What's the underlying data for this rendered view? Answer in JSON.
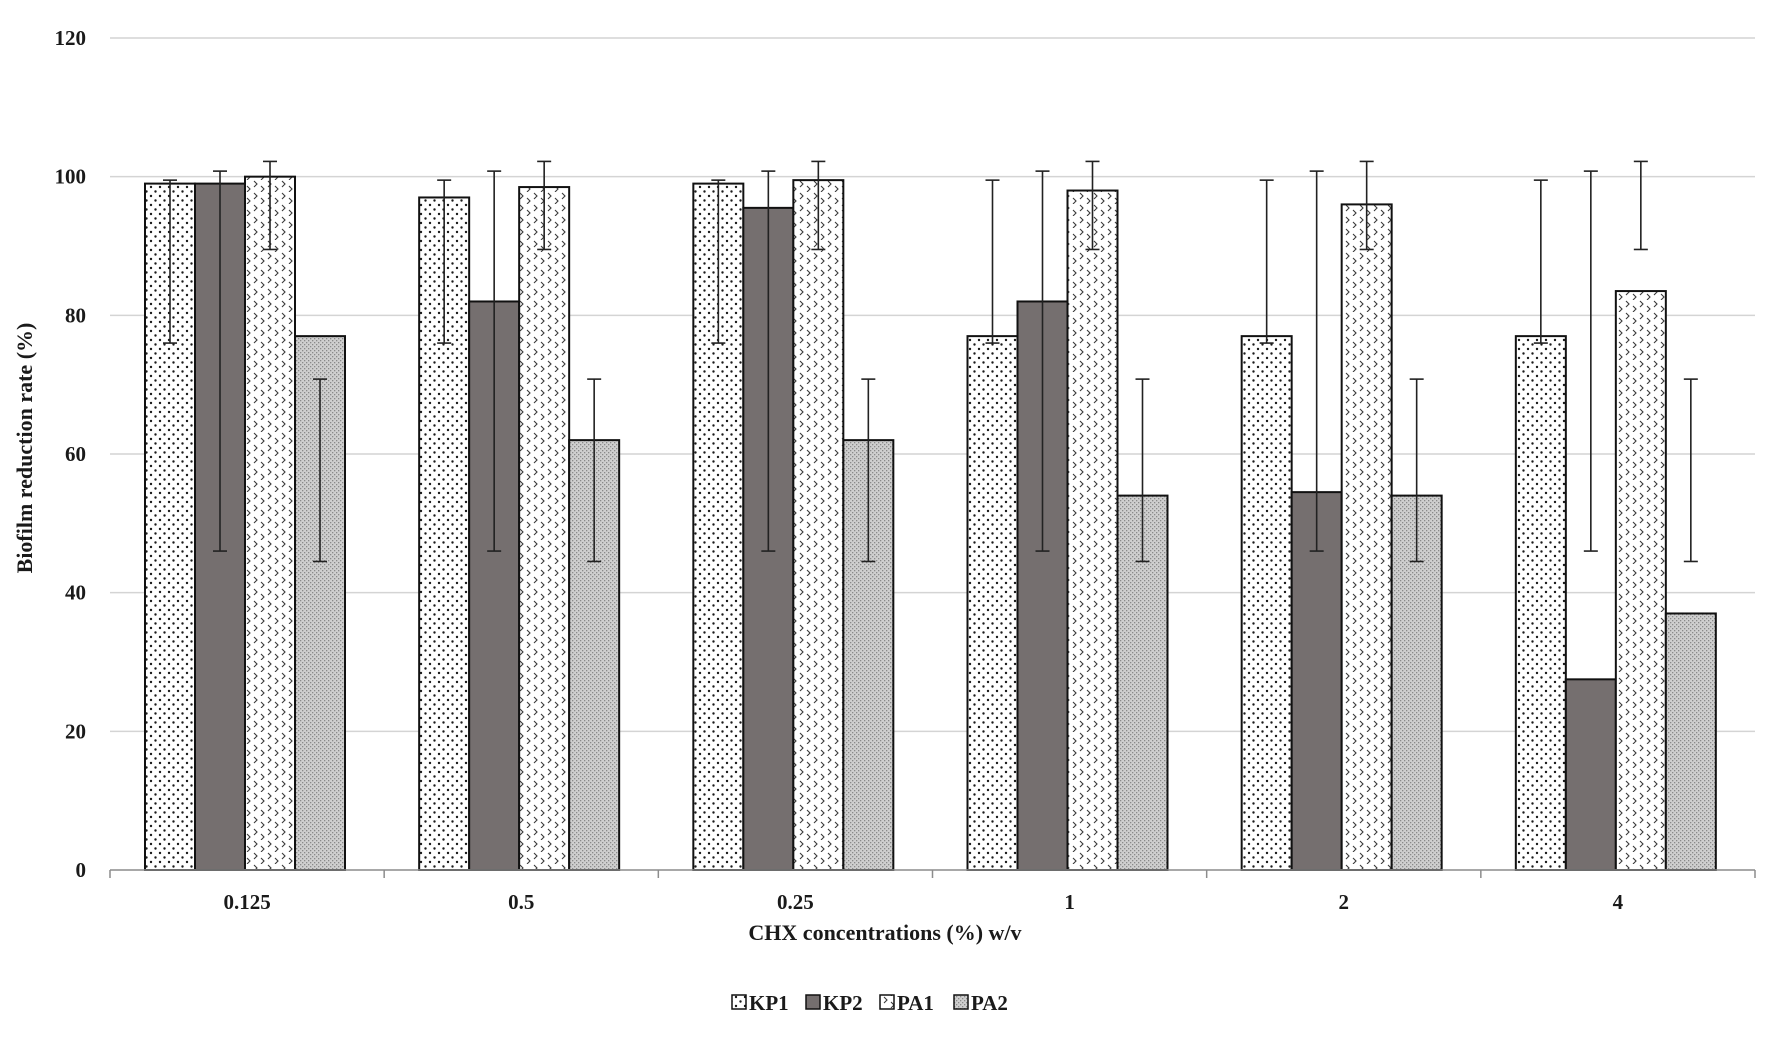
{
  "chart_data": {
    "type": "bar",
    "title": "",
    "xlabel": "CHX  concentrations  (%) w/v",
    "ylabel": "Biofilm  reduction  rate  (%)",
    "ylim": [
      0,
      120
    ],
    "yticks": [
      0,
      20,
      40,
      60,
      80,
      100,
      120
    ],
    "grid": true,
    "legend_position": "bottom",
    "categories": [
      "0.125",
      "0.5",
      "0.25",
      "1",
      "2",
      "4"
    ],
    "series": [
      {
        "name": "KP1",
        "pattern": "dots",
        "color": "#ffffff",
        "values": [
          99,
          97,
          99,
          77,
          77,
          77
        ],
        "error_low": [
          76,
          76,
          76,
          76,
          76,
          76
        ],
        "error_high": [
          99.5,
          99.5,
          99.5,
          99.5,
          99.5,
          99.5
        ]
      },
      {
        "name": "KP2",
        "pattern": "solid",
        "color": "#756f6f",
        "values": [
          99,
          82,
          95.5,
          82,
          54.5,
          27.5
        ],
        "error_low": [
          46,
          46,
          46,
          46,
          46,
          46
        ],
        "error_high": [
          100.8,
          100.8,
          100.8,
          100.8,
          100.8,
          100.8
        ]
      },
      {
        "name": "PA1",
        "pattern": "chevrons",
        "color": "#ffffff",
        "values": [
          100,
          98.5,
          99.5,
          98,
          96,
          83.5
        ],
        "error_low": [
          89.5,
          89.5,
          89.5,
          89.5,
          89.5,
          89.5
        ],
        "error_high": [
          102.2,
          102.2,
          102.2,
          102.2,
          102.2,
          102.2
        ]
      },
      {
        "name": "PA2",
        "pattern": "stipple",
        "color": "#c8c8c8",
        "values": [
          77,
          62,
          62,
          54,
          54,
          37
        ],
        "error_low": [
          44.5,
          44.5,
          44.5,
          44.5,
          44.5,
          44.5
        ],
        "error_high": [
          70.8,
          70.8,
          70.8,
          70.8,
          70.8,
          70.8
        ]
      }
    ]
  }
}
